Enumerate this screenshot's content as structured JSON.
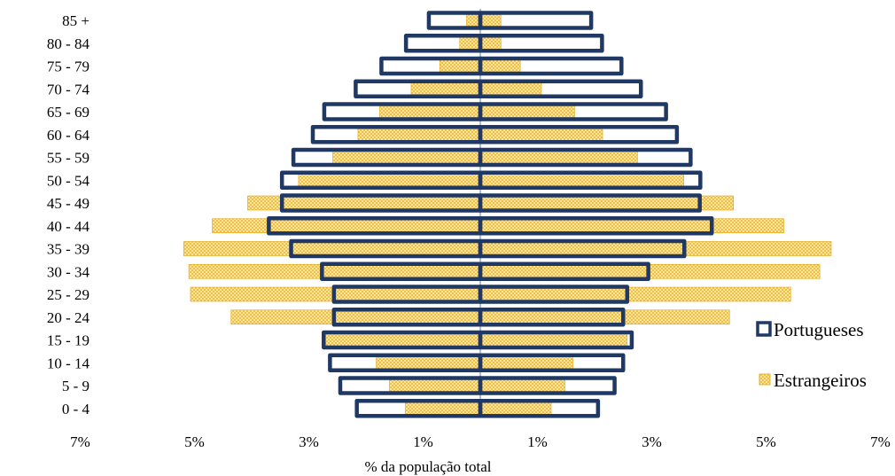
{
  "chart_data": {
    "type": "bar",
    "subtype": "population-pyramid",
    "orientation": "horizontal",
    "categories": [
      "0 - 4",
      "5 - 9",
      "10 - 14",
      "15 - 19",
      "20 - 24",
      "25 - 29",
      "30 - 34",
      "35 - 39",
      "40 - 44",
      "45 - 49",
      "50 - 54",
      "55 - 59",
      "60 - 64",
      "65 - 69",
      "70 - 74",
      "75 - 79",
      "80 - 84",
      "85 +"
    ],
    "series": [
      {
        "name": "Portugueses",
        "style": "outlined",
        "left": [
          2.16,
          2.45,
          2.63,
          2.74,
          2.56,
          2.56,
          2.77,
          3.31,
          3.7,
          3.47,
          3.47,
          3.27,
          2.93,
          2.73,
          2.18,
          1.73,
          1.3,
          0.9
        ],
        "right": [
          2.06,
          2.35,
          2.5,
          2.65,
          2.5,
          2.57,
          2.94,
          3.57,
          4.05,
          3.84,
          3.85,
          3.68,
          3.44,
          3.25,
          2.81,
          2.47,
          2.13,
          1.94
        ]
      },
      {
        "name": "Estrangeiros",
        "style": "hatched",
        "left": [
          1.31,
          1.59,
          1.82,
          2.73,
          4.36,
          5.07,
          5.1,
          5.19,
          4.69,
          4.07,
          3.18,
          2.58,
          2.14,
          1.76,
          1.21,
          0.71,
          0.36,
          0.24
        ],
        "right": [
          1.24,
          1.48,
          1.62,
          2.57,
          4.36,
          5.43,
          5.94,
          6.14,
          5.31,
          4.43,
          3.56,
          2.75,
          2.14,
          1.65,
          1.07,
          0.7,
          0.36,
          0.36
        ]
      }
    ],
    "x_ticks": [
      "7%",
      "5%",
      "3%",
      "1%",
      "1%",
      "3%",
      "5%",
      "7%"
    ],
    "xlim": [
      -7,
      7
    ],
    "xlabel": "% da população total",
    "ylabel": "",
    "title": "",
    "grid": false,
    "legend_position": "right",
    "colors": {
      "outline": "#1f3864",
      "hatch_fill": "#ffe599",
      "hatch_dot": "#e0a20a",
      "center_line": "#8ea9c8"
    }
  }
}
